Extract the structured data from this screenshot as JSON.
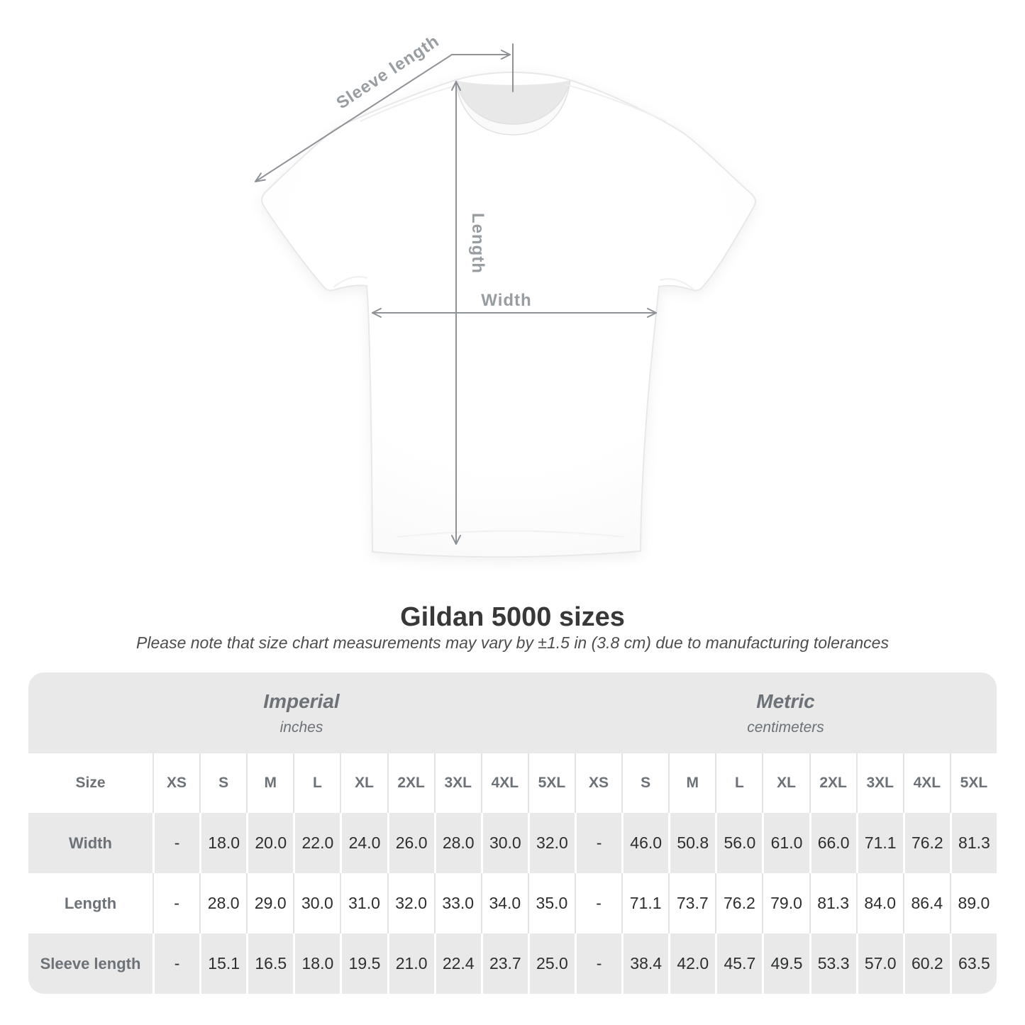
{
  "diagram": {
    "labels": {
      "sleeve_length": "Sleeve length",
      "length": "Length",
      "width": "Width"
    },
    "line_color": "#8e9297",
    "label_color": "#989da2"
  },
  "title": "Gildan 5000 sizes",
  "subtitle": "Please note that size chart measurements may vary by ±1.5 in (3.8 cm) due to manufacturing tolerances",
  "table": {
    "sections": [
      {
        "label": "Imperial",
        "sublabel": "inches"
      },
      {
        "label": "Metric",
        "sublabel": "centimeters"
      }
    ],
    "size_header": "Size",
    "sizes": [
      "XS",
      "S",
      "M",
      "L",
      "XL",
      "2XL",
      "3XL",
      "4XL",
      "5XL"
    ],
    "rows": [
      {
        "label": "Width",
        "imperial": [
          "-",
          "18.0",
          "20.0",
          "22.0",
          "24.0",
          "26.0",
          "28.0",
          "30.0",
          "32.0"
        ],
        "metric": [
          "-",
          "46.0",
          "50.8",
          "56.0",
          "61.0",
          "66.0",
          "71.1",
          "76.2",
          "81.3"
        ]
      },
      {
        "label": "Length",
        "imperial": [
          "-",
          "28.0",
          "29.0",
          "30.0",
          "31.0",
          "32.0",
          "33.0",
          "34.0",
          "35.0"
        ],
        "metric": [
          "-",
          "71.1",
          "73.7",
          "76.2",
          "79.0",
          "81.3",
          "84.0",
          "86.4",
          "89.0"
        ]
      },
      {
        "label": "Sleeve length",
        "imperial": [
          "-",
          "15.1",
          "16.5",
          "18.0",
          "19.5",
          "21.0",
          "22.4",
          "23.7",
          "25.0"
        ],
        "metric": [
          "-",
          "38.4",
          "42.0",
          "45.7",
          "49.5",
          "53.3",
          "57.0",
          "60.2",
          "63.5"
        ]
      }
    ],
    "colors": {
      "row_gray": "#e9e9e9",
      "divider_gray": "#e3e3e3",
      "header_text": "#6c7277",
      "value_text": "#2c2e30"
    }
  }
}
